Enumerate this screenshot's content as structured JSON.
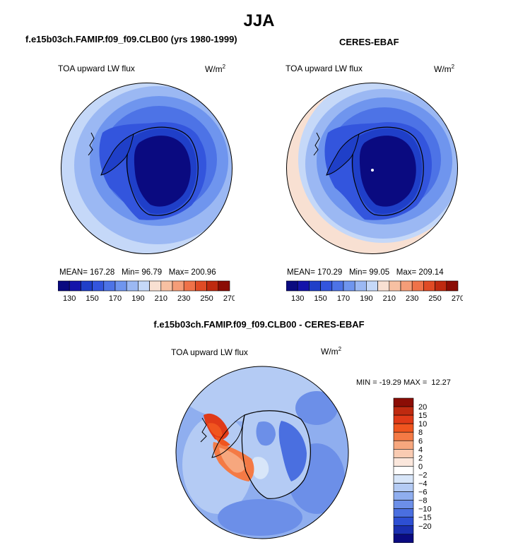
{
  "page": {
    "season": "JJA",
    "model_title": "f.e15b03ch.FAMIP.f09_f09.CLB00 (yrs 1980-1999)",
    "obs_title": "CERES-EBAF",
    "diff_title": "f.e15b03ch.FAMIP.f09_f09.CLB00 - CERES-EBAF"
  },
  "panels": {
    "model": {
      "field": "TOA upward LW flux",
      "units": "W/m",
      "units_sup": "2",
      "mean_label": "MEAN=",
      "mean": "167.28",
      "min_label": "Min=",
      "min": "96.79",
      "max_label": "Max=",
      "max": "200.96"
    },
    "obs": {
      "field": "TOA upward LW flux",
      "units": "W/m",
      "units_sup": "2",
      "mean_label": "MEAN=",
      "mean": "170.29",
      "min_label": "Min=",
      "min": "99.05",
      "max_label": "Max=",
      "max": "209.14"
    },
    "diff": {
      "field": "TOA upward LW flux",
      "units": "W/m",
      "units_sup": "2",
      "minmax": "MIN = -19.29 MAX =  12.27"
    }
  },
  "colorbar_abs": {
    "colors": [
      "#0a0a80",
      "#1414aa",
      "#1f3fc8",
      "#3355dd",
      "#4d73e6",
      "#6f95ee",
      "#9bb8f3",
      "#c5d8f8",
      "#f8e0d2",
      "#f7c0a2",
      "#f59d78",
      "#ef7249",
      "#e04b25",
      "#bf2a10",
      "#8b0d05"
    ],
    "labels": [
      "130",
      "150",
      "170",
      "190",
      "210",
      "230",
      "250",
      "270"
    ]
  },
  "colorbar_diff": {
    "colors": [
      "#8b0d05",
      "#bf2a10",
      "#e03a18",
      "#f0551f",
      "#f47a45",
      "#f7a77e",
      "#f9cbb2",
      "#fbe7dc",
      "#ffffff",
      "#d8e6f9",
      "#b4cbf4",
      "#8faeef",
      "#6c8fe8",
      "#4a6fe0",
      "#2d4fd3",
      "#1a2fb0",
      "#0a0a80"
    ],
    "labels": [
      "20",
      "15",
      "10",
      "8",
      "6",
      "4",
      "2",
      "0",
      "−2",
      "−4",
      "−6",
      "−8",
      "−10",
      "−15",
      "−20"
    ]
  }
}
